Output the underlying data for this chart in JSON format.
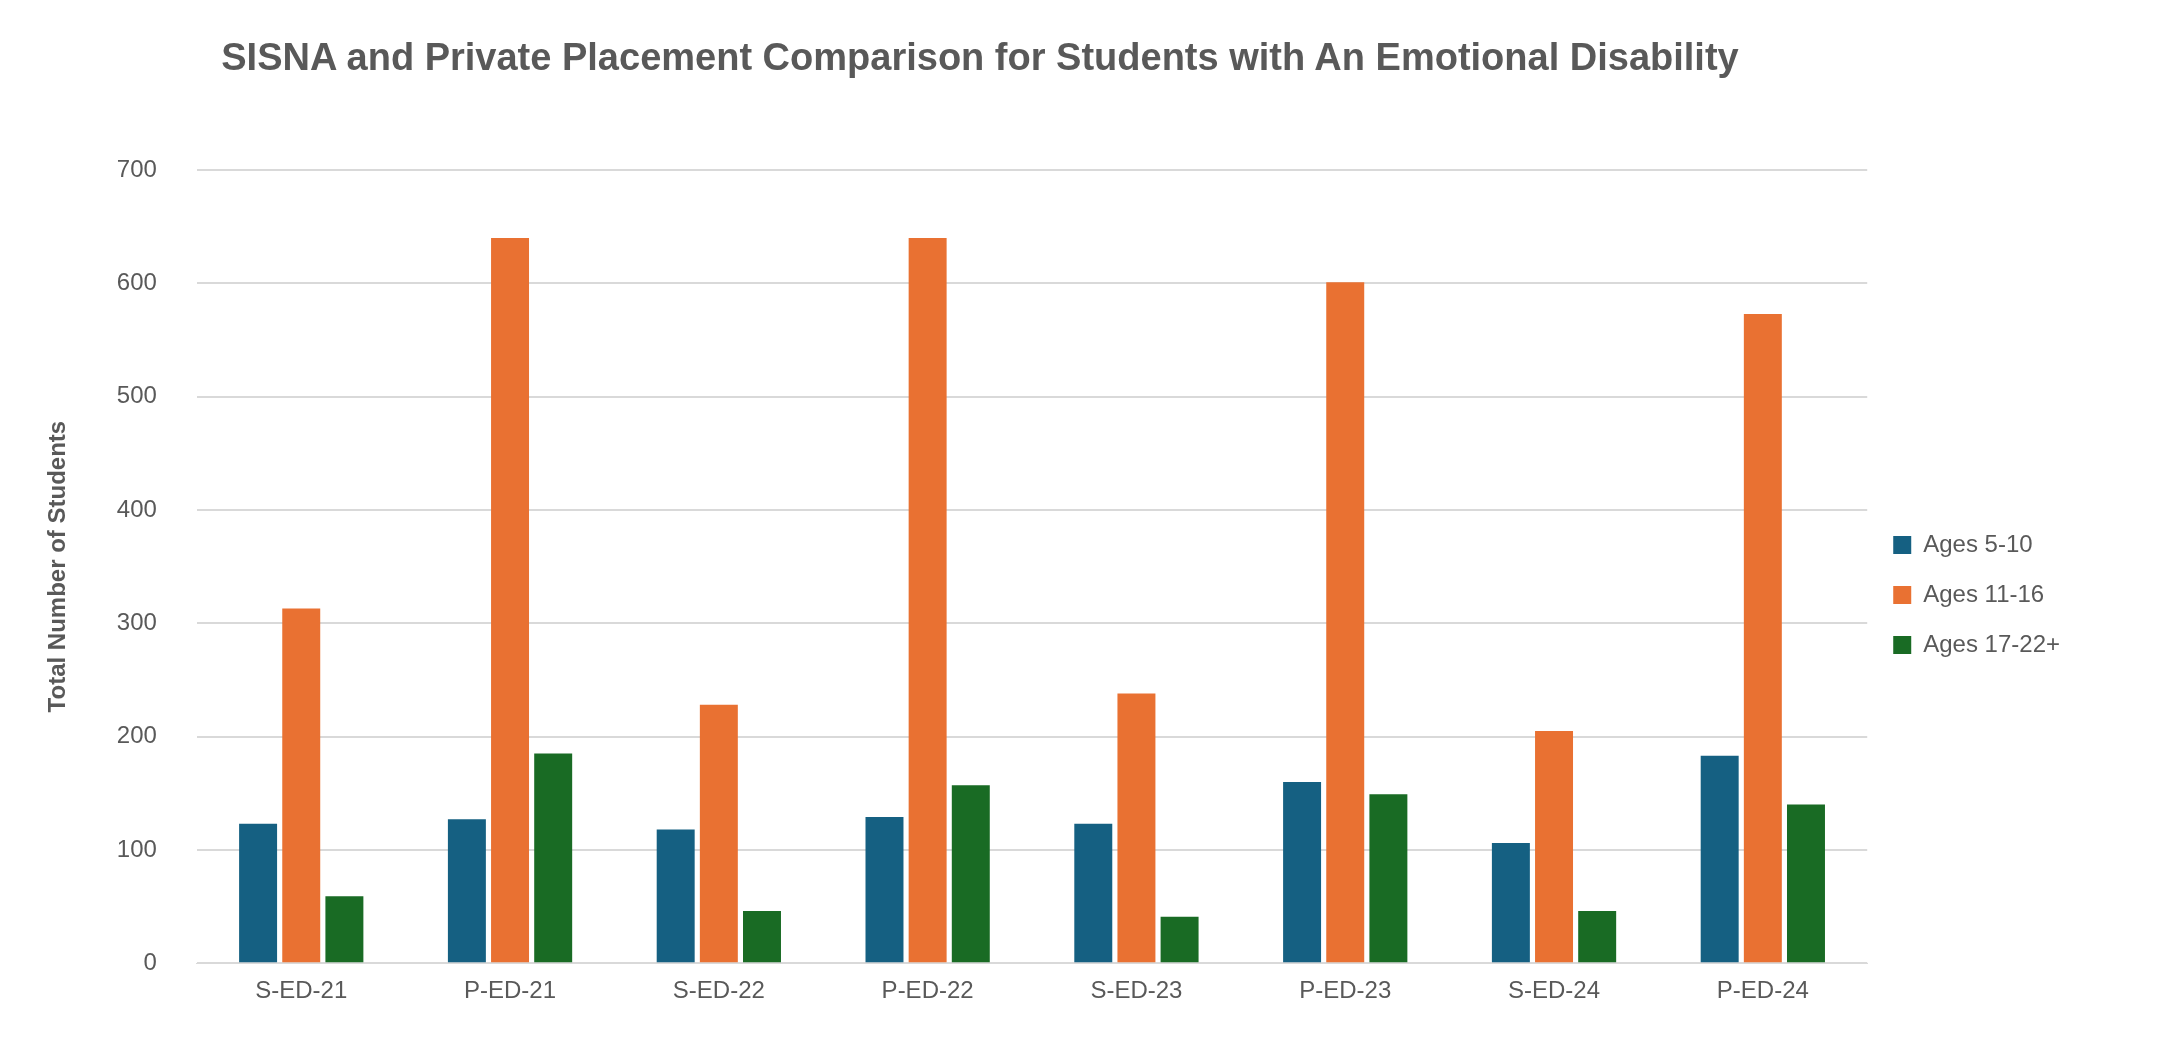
{
  "chart_data": {
    "type": "bar",
    "title": "SISNA and Private Placement Comparison for Students with An Emotional Disability",
    "ylabel": "Total Number of Students",
    "categories": [
      "S-ED-21",
      "P-ED-21",
      "S-ED-22",
      "P-ED-22",
      "S-ED-23",
      "P-ED-23",
      "S-ED-24",
      "P-ED-24"
    ],
    "series": [
      {
        "name": "Ages 5-10",
        "color": "#156082",
        "values": [
          123,
          127,
          118,
          129,
          123,
          160,
          106,
          183
        ]
      },
      {
        "name": "Ages 11-16",
        "color": "#e97132",
        "values": [
          313,
          640,
          228,
          640,
          238,
          601,
          205,
          573
        ]
      },
      {
        "name": "Ages 17-22+",
        "color": "#196b24",
        "values": [
          59,
          185,
          46,
          157,
          41,
          149,
          46,
          140
        ]
      }
    ],
    "ylim": [
      0,
      700
    ],
    "yticks": [
      0,
      100,
      200,
      300,
      400,
      500,
      600,
      700
    ],
    "grid": "y",
    "legend": "right"
  }
}
